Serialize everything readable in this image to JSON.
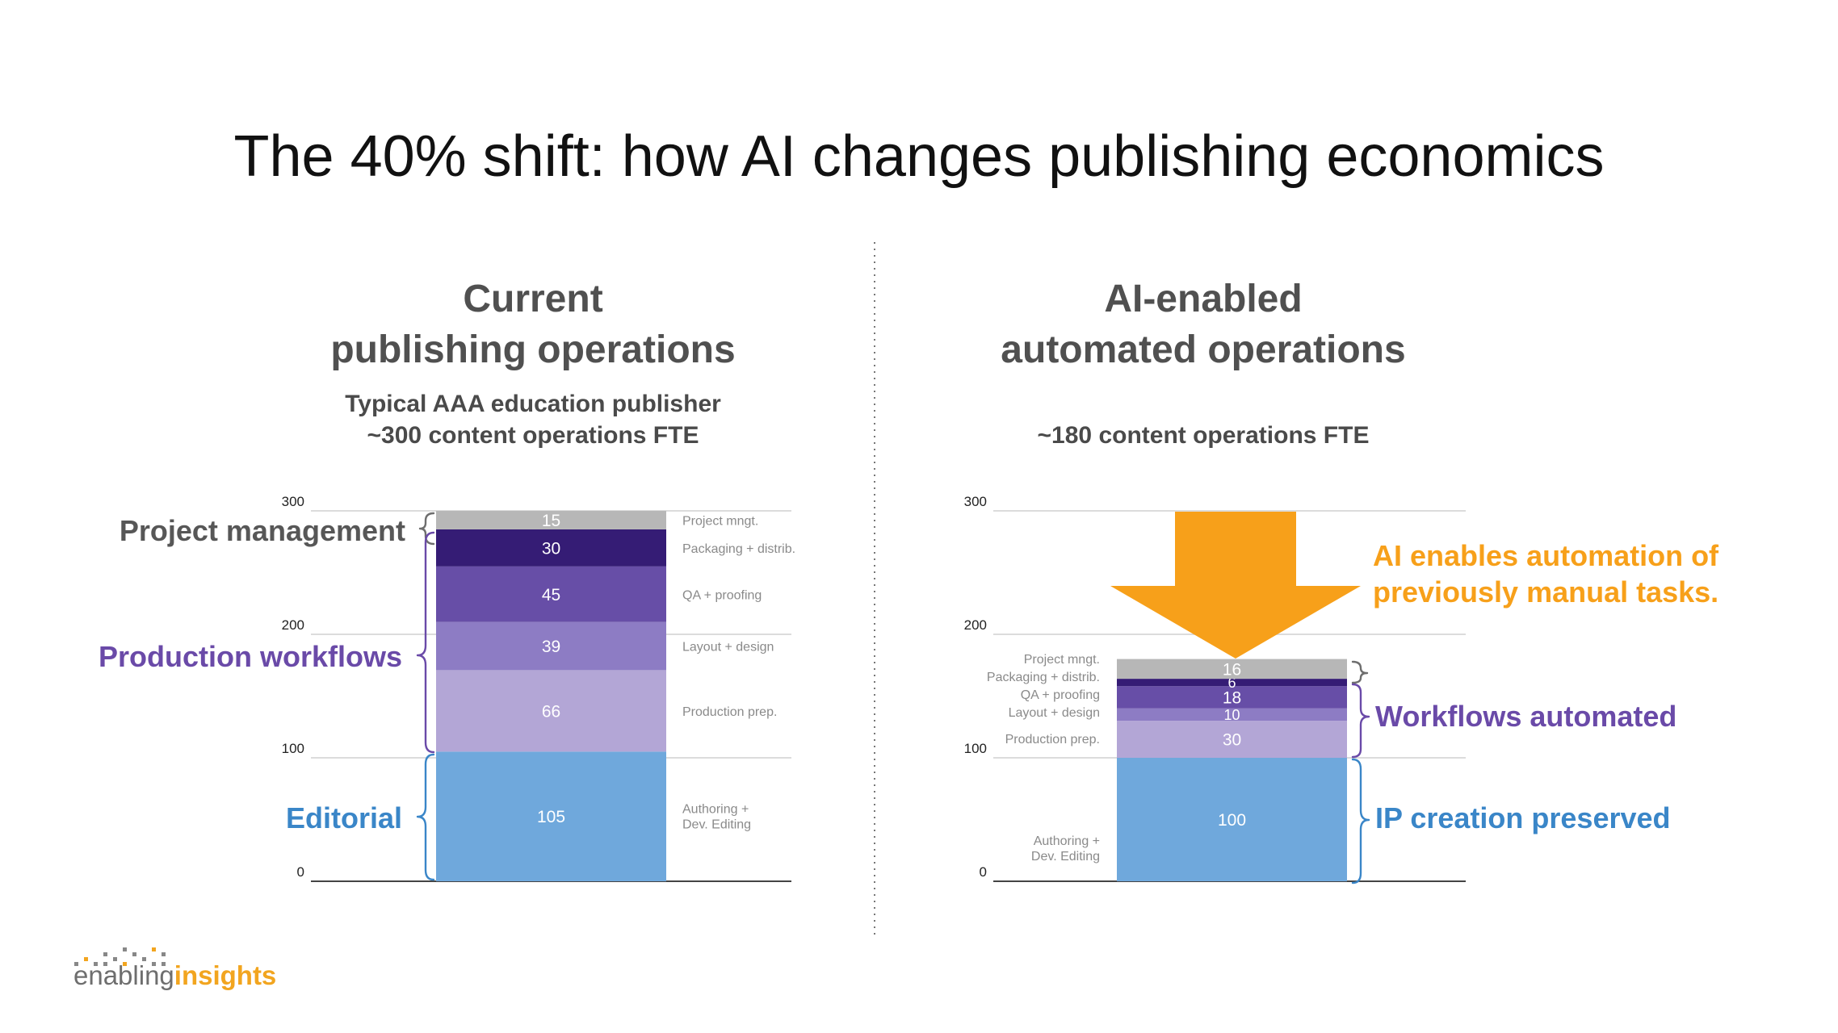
{
  "slide": {
    "title": "The 40% shift: how AI changes publishing economics"
  },
  "left_panel": {
    "heading_line1": "Current",
    "heading_line2": "publishing operations",
    "subtitle_line1": "Typical AAA education publisher",
    "subtitle_line2": "~300 content operations FTE",
    "groups": [
      {
        "label": "Project management",
        "color": "#575757"
      },
      {
        "label": "Production workflows",
        "color": "#6a4aa8"
      },
      {
        "label": "Editorial",
        "color": "#3a86c8"
      }
    ]
  },
  "right_panel": {
    "heading_line1": "AI-enabled",
    "heading_line2": "automated operations",
    "subtitle_line1": "~180 content operations FTE",
    "groups": [
      {
        "label": "Workflows automated",
        "color": "#6a4aa8"
      },
      {
        "label": "IP creation preserved",
        "color": "#3a86c8"
      }
    ],
    "callout_line1": "AI enables automation of",
    "callout_line2": "previously manual tasks.",
    "callout_color": "#f7a01a",
    "arrow_icon": "down-arrow-icon"
  },
  "chart_data": [
    {
      "type": "bar",
      "stacked": true,
      "title": "Current publishing operations",
      "ylim": [
        0,
        300
      ],
      "yticks": [
        "0",
        "100",
        "200",
        "300"
      ],
      "grid": true,
      "segments": [
        {
          "name": "Authoring + Dev. Editing",
          "value": 105,
          "color": "#6fa8dc"
        },
        {
          "name": "Production prep.",
          "value": 66,
          "color": "#b3a6d6"
        },
        {
          "name": "Layout + design",
          "value": 39,
          "color": "#8d7cc4"
        },
        {
          "name": "QA + proofing",
          "value": 45,
          "color": "#674ea7"
        },
        {
          "name": "Packaging + distrib.",
          "value": 30,
          "color": "#351c75"
        },
        {
          "name": "Project mngt.",
          "value": 15,
          "color": "#b7b7b7"
        }
      ]
    },
    {
      "type": "bar",
      "stacked": true,
      "title": "AI-enabled automated operations",
      "ylim": [
        0,
        300
      ],
      "yticks": [
        "0",
        "100",
        "200",
        "300"
      ],
      "grid": true,
      "segments": [
        {
          "name": "Authoring + Dev. Editing",
          "value": 100,
          "color": "#6fa8dc"
        },
        {
          "name": "Production prep.",
          "value": 30,
          "color": "#b3a6d6"
        },
        {
          "name": "Layout + design",
          "value": 10,
          "color": "#8d7cc4"
        },
        {
          "name": "QA + proofing",
          "value": 18,
          "color": "#674ea7"
        },
        {
          "name": "Packaging + distrib.",
          "value": 6,
          "color": "#351c75"
        },
        {
          "name": "Project mngt.",
          "value": 16,
          "color": "#b7b7b7"
        }
      ]
    }
  ],
  "logo": {
    "text_part1": "enabling",
    "text_part2": "insights",
    "color1": "#6e6e6e",
    "color2": "#f2a51f"
  }
}
